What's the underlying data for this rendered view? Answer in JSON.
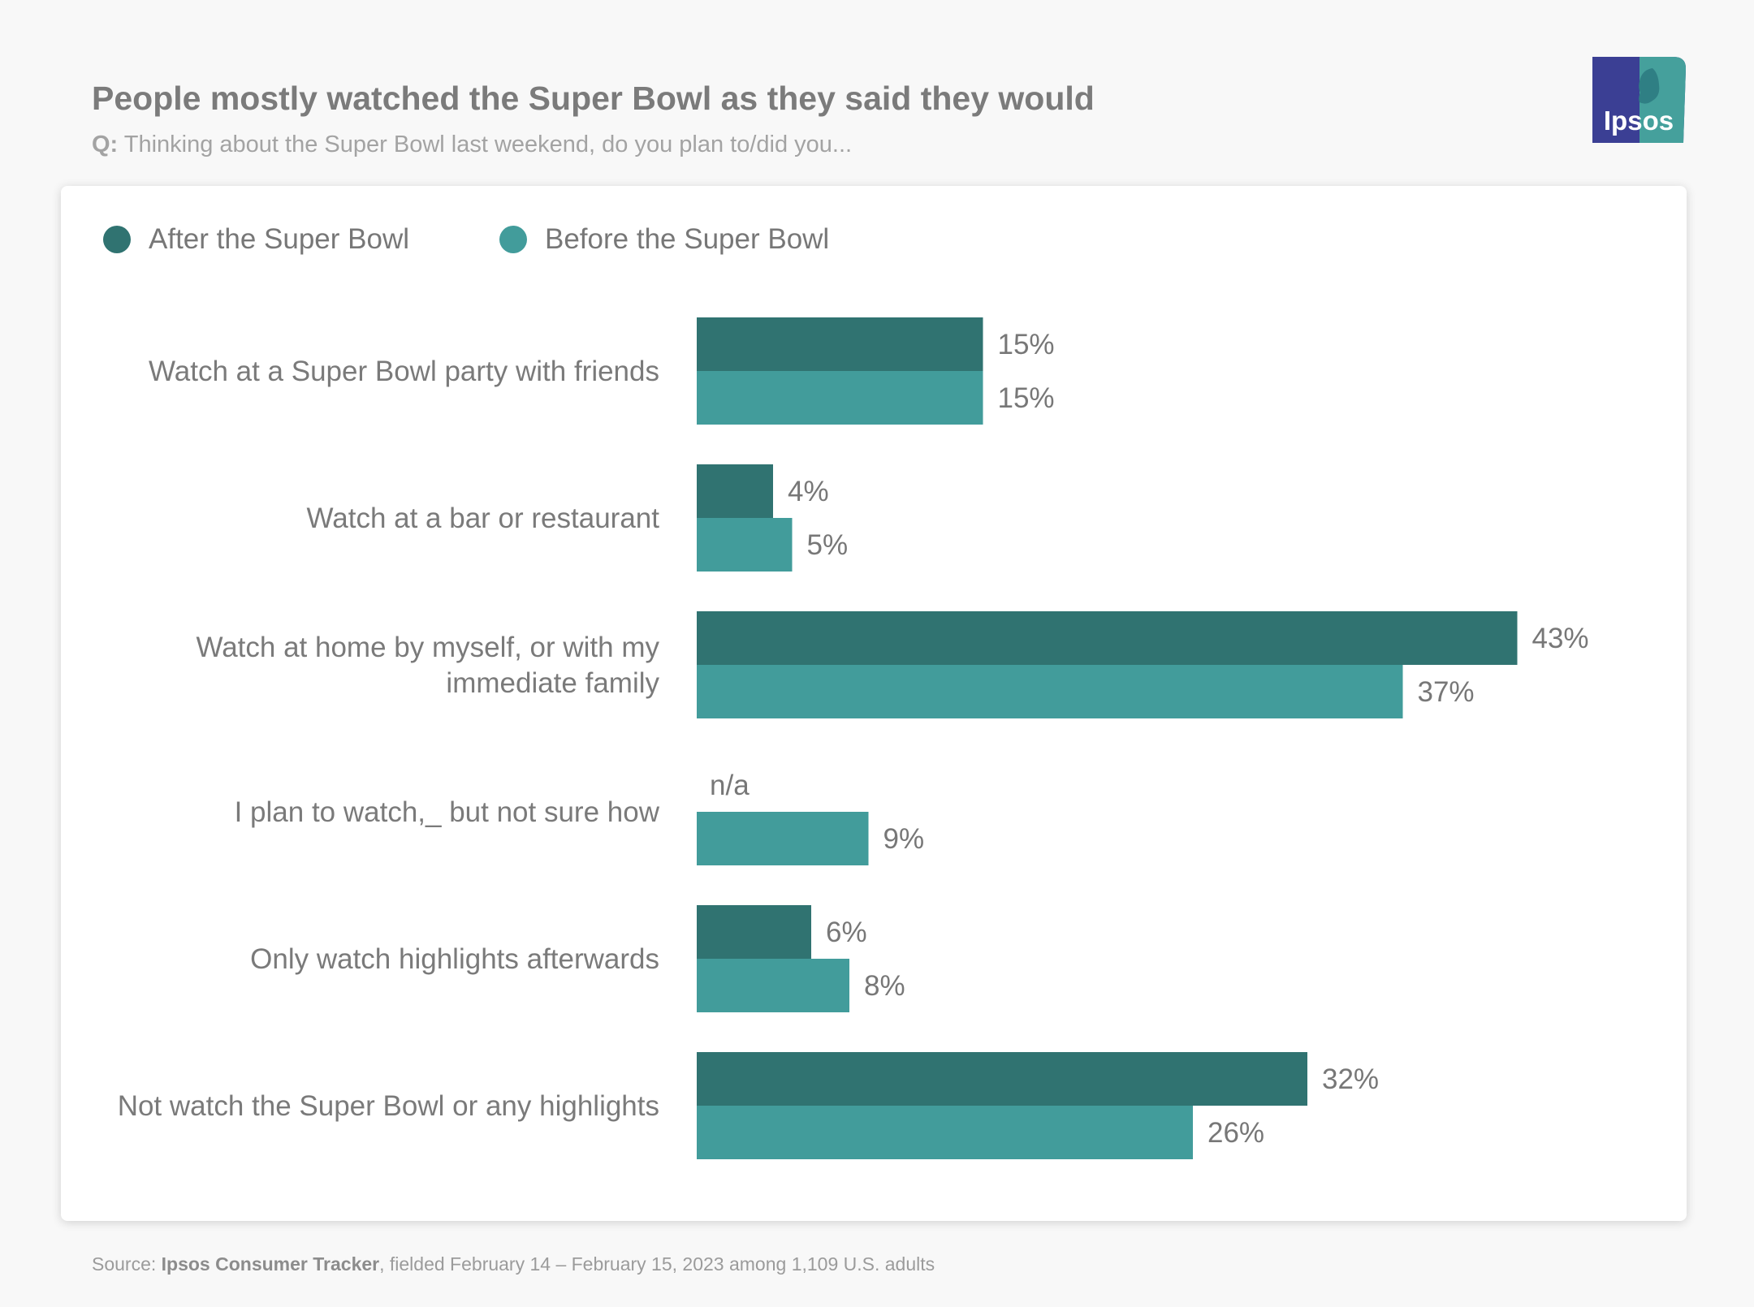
{
  "header": {
    "title": "People mostly watched the Super Bowl as they said they would",
    "subtitle_prefix": "Q:",
    "subtitle_text": " Thinking about the Super Bowl last weekend, do you plan to/did you..."
  },
  "logo": {
    "text": "Ipsos",
    "icon": "ipsos-head-logo",
    "color_left": "#3b3f94",
    "color_right": "#45a09c"
  },
  "footer": {
    "source_label": "Source: ",
    "source_name": "Ipsos Consumer Tracker",
    "source_rest": ", fielded February 14 – February 15, 2023 among 1,109 U.S. adults"
  },
  "colors": {
    "after": "#307371",
    "before": "#429c9b"
  },
  "chart_data": {
    "type": "bar",
    "orientation": "horizontal",
    "title": "People mostly watched the Super Bowl as they said they would",
    "legend_position": "top-left",
    "grid": false,
    "xlim": [
      0,
      50
    ],
    "categories": [
      "Watch at a Super Bowl party with friends",
      "Watch at a bar or restaurant",
      "Watch at home by myself, or with my immediate family",
      "I plan to watch,_ but not sure how",
      "Only watch highlights afterwards",
      "Not watch the Super Bowl or any highlights"
    ],
    "series": [
      {
        "name": "After the Super Bowl",
        "values": [
          15,
          4,
          43,
          null,
          6,
          32
        ],
        "labels": [
          "15%",
          "4%",
          "43%",
          "n/a",
          "6%",
          "32%"
        ]
      },
      {
        "name": "Before the Super Bowl",
        "values": [
          15,
          5,
          37,
          9,
          8,
          26
        ],
        "labels": [
          "15%",
          "5%",
          "37%",
          "9%",
          "8%",
          "26%"
        ]
      }
    ]
  }
}
